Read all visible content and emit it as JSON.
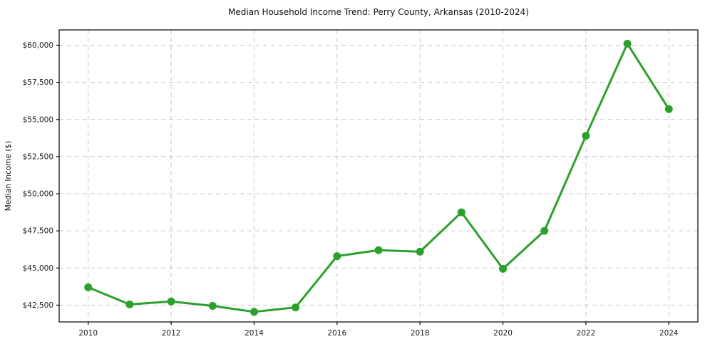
{
  "chart_data": {
    "type": "line",
    "title": "Median Household Income Trend: Perry County, Arkansas (2010-2024)",
    "xlabel": "",
    "ylabel": "Median Income ($)",
    "x": [
      2010,
      2011,
      2012,
      2013,
      2014,
      2015,
      2016,
      2017,
      2018,
      2019,
      2020,
      2021,
      2022,
      2023,
      2024
    ],
    "values": [
      43700,
      42550,
      42750,
      42450,
      42050,
      42350,
      45800,
      46200,
      46100,
      48750,
      44950,
      47500,
      53900,
      60100,
      55700
    ],
    "xlim": [
      2009.3,
      2024.7
    ],
    "ylim": [
      41370,
      61030
    ],
    "xtick_values": [
      2010,
      2012,
      2014,
      2016,
      2018,
      2020,
      2022,
      2024
    ],
    "xtick_labels": [
      "2010",
      "2012",
      "2014",
      "2016",
      "2018",
      "2020",
      "2022",
      "2024"
    ],
    "ytick_values": [
      42500,
      45000,
      47500,
      50000,
      52500,
      55000,
      57500,
      60000
    ],
    "ytick_labels": [
      "$42,500",
      "$45,000",
      "$47,500",
      "$50,000",
      "$52,500",
      "$55,000",
      "$57,500",
      "$60,000"
    ],
    "grid": true,
    "legend": "none",
    "marker": "circle",
    "colors": {
      "accent": "#2ca02c",
      "grid": "#c8c8c8",
      "axis": "#000000",
      "background": "#ffffff",
      "text": "#111111"
    }
  }
}
